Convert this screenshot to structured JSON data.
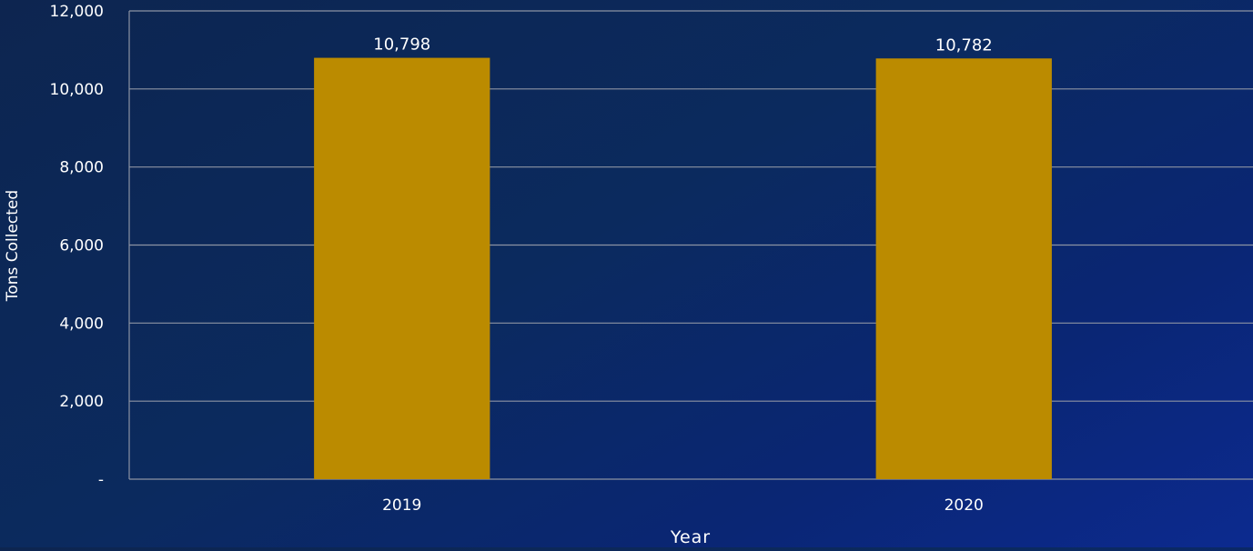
{
  "chart_data": {
    "type": "bar",
    "categories": [
      "2019",
      "2020"
    ],
    "values": [
      10798,
      10782
    ],
    "data_labels": [
      "10,798",
      "10,782"
    ],
    "xlabel": "Year",
    "ylabel": "Tons Collected",
    "ylim": [
      0,
      12000
    ],
    "y_ticks": [
      0,
      2000,
      4000,
      6000,
      8000,
      10000,
      12000
    ],
    "y_tick_labels": [
      "-",
      "2,000",
      "4,000",
      "6,000",
      "8,000",
      "10,000",
      "12,000"
    ],
    "grid": true,
    "legend": "none",
    "colors": {
      "bar": "#bb8b00",
      "gridline": "#8c93a3",
      "text": "#ffffff"
    }
  }
}
